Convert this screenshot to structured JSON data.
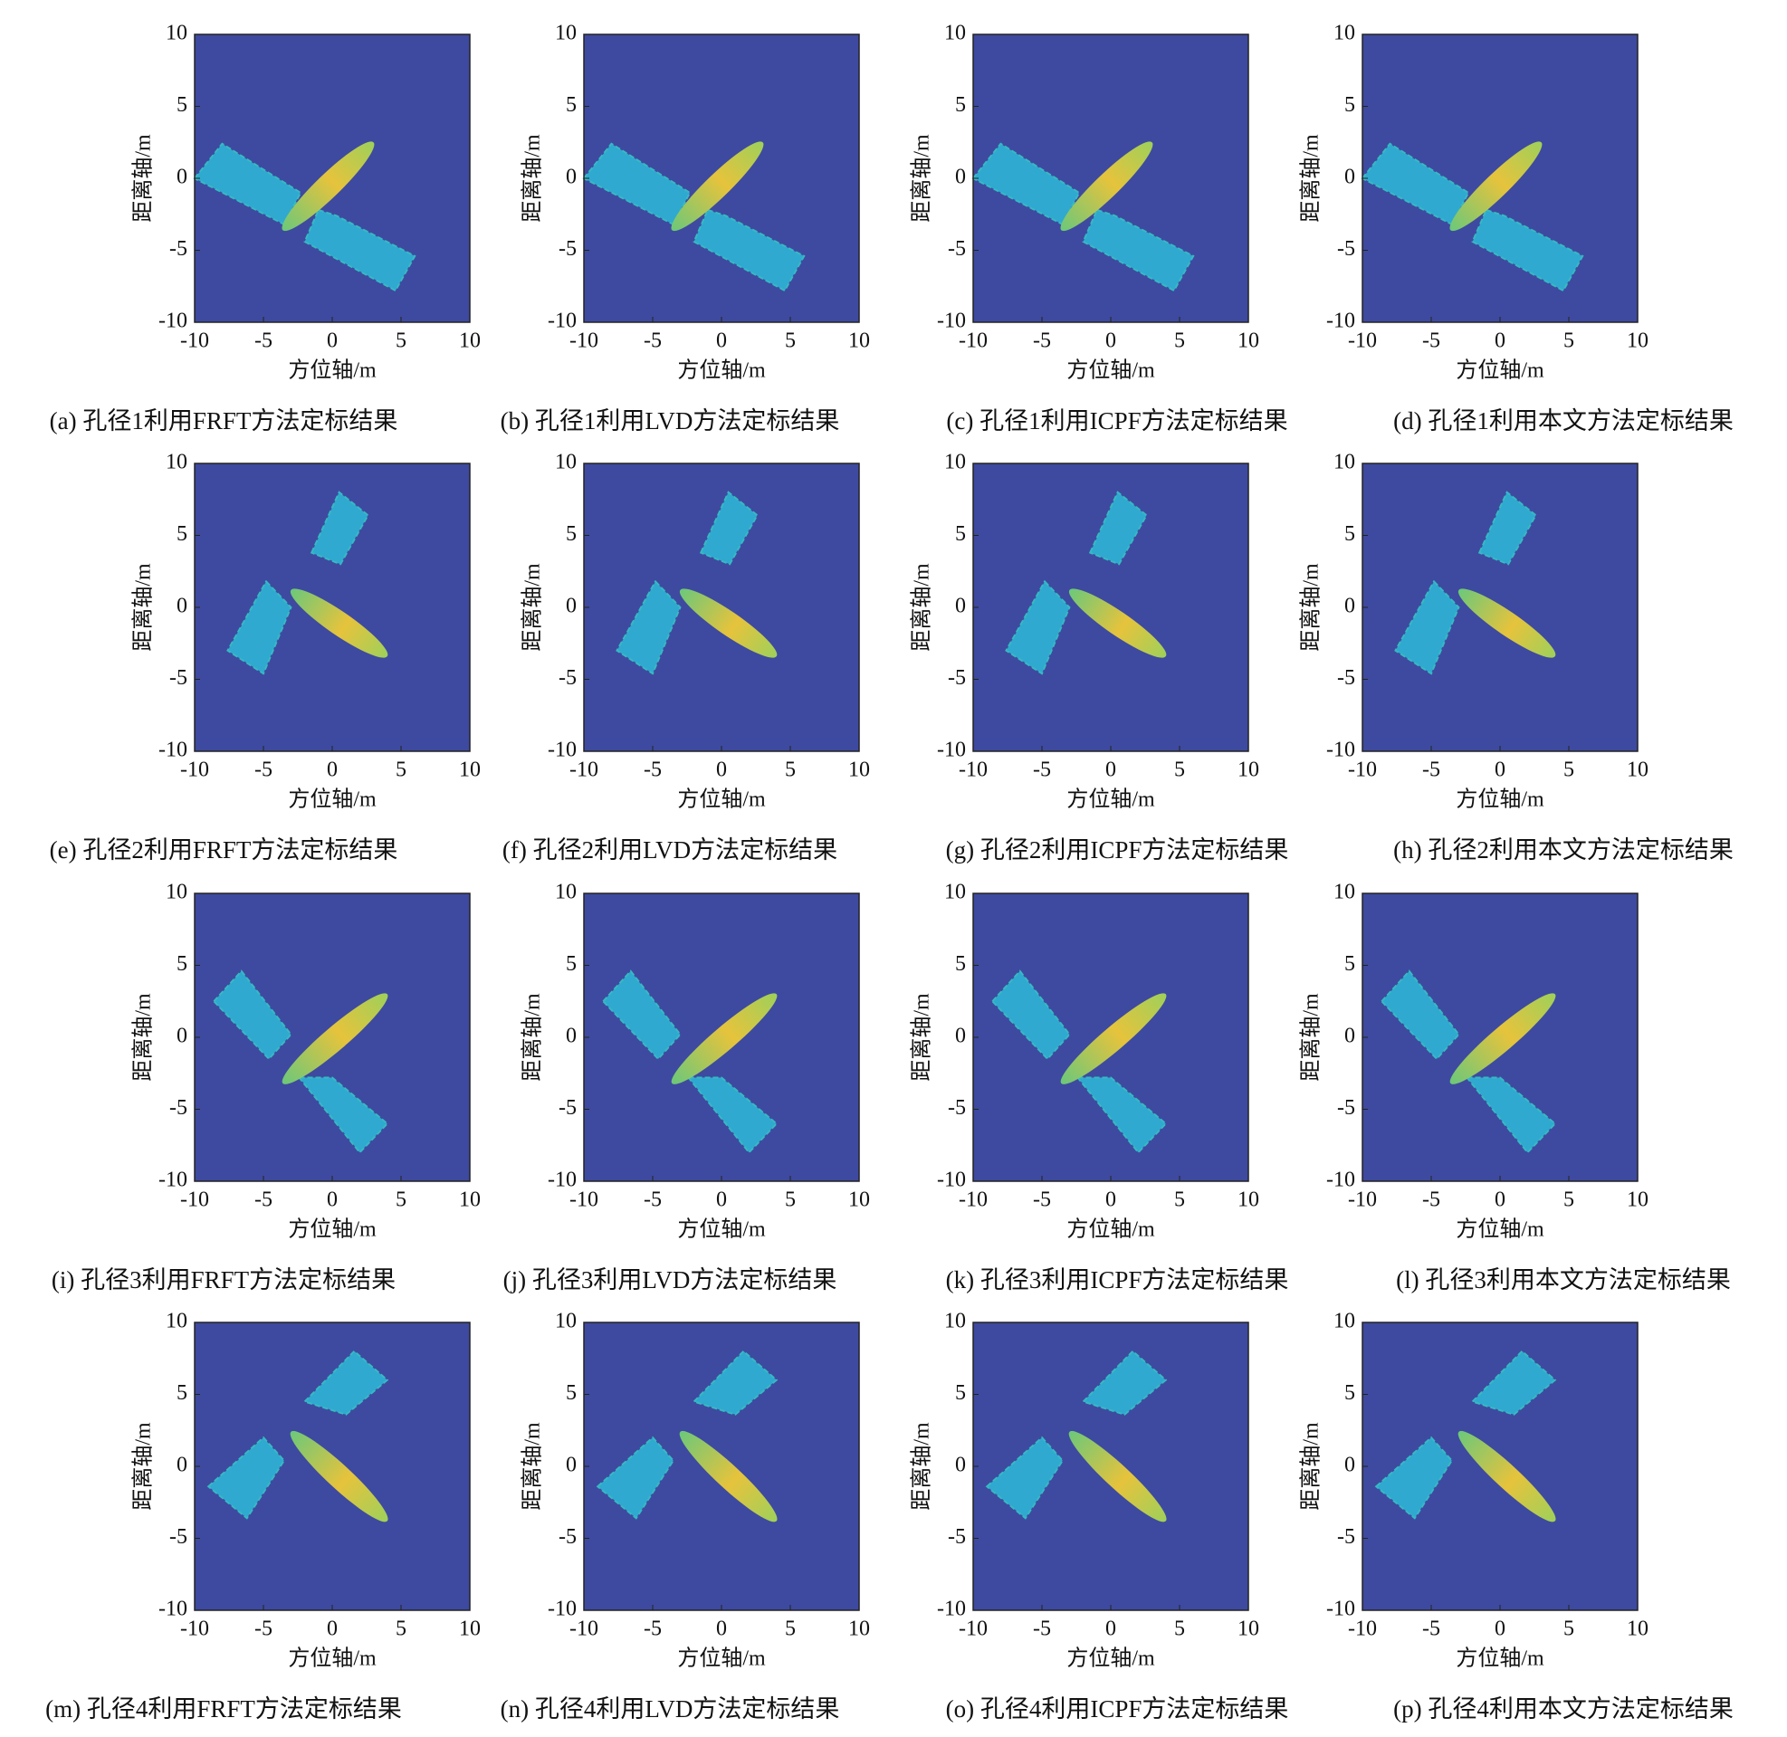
{
  "chart_data": [
    {
      "type": "image",
      "caption": "(a) 孔径1利用FRFT方法定标结果",
      "xlabel": "方位轴/m",
      "ylabel": "距离轴/m",
      "xlim": [
        -10,
        10
      ],
      "ylim": [
        -10,
        10
      ],
      "xticks": [
        -10,
        -5,
        0,
        5,
        10
      ],
      "yticks": [
        -10,
        -5,
        0,
        5,
        10
      ]
    },
    {
      "type": "image",
      "caption": "(b) 孔径1利用LVD方法定标结果",
      "xlabel": "方位轴/m",
      "ylabel": "距离轴/m",
      "xlim": [
        -10,
        10
      ],
      "ylim": [
        -10,
        10
      ],
      "xticks": [
        -10,
        -5,
        0,
        5,
        10
      ],
      "yticks": [
        -10,
        -5,
        0,
        5,
        10
      ]
    },
    {
      "type": "image",
      "caption": "(c) 孔径1利用ICPF方法定标结果",
      "xlabel": "方位轴/m",
      "ylabel": "距离轴/m",
      "xlim": [
        -10,
        10
      ],
      "ylim": [
        -10,
        10
      ],
      "xticks": [
        -10,
        -5,
        0,
        5,
        10
      ],
      "yticks": [
        -10,
        -5,
        0,
        5,
        10
      ]
    },
    {
      "type": "image",
      "caption": "(d) 孔径1利用本文方法定标结果",
      "xlabel": "方位轴/m",
      "ylabel": "距离轴/m",
      "xlim": [
        -10,
        10
      ],
      "ylim": [
        -10,
        10
      ],
      "xticks": [
        -10,
        -5,
        0,
        5,
        10
      ],
      "yticks": [
        -10,
        -5,
        0,
        5,
        10
      ]
    },
    {
      "type": "image",
      "caption": "(e) 孔径2利用FRFT方法定标结果",
      "xlabel": "方位轴/m",
      "ylabel": "距离轴/m",
      "xlim": [
        -10,
        10
      ],
      "ylim": [
        -10,
        10
      ],
      "xticks": [
        -10,
        -5,
        0,
        5,
        10
      ],
      "yticks": [
        -10,
        -5,
        0,
        5,
        10
      ]
    },
    {
      "type": "image",
      "caption": "(f) 孔径2利用LVD方法定标结果",
      "xlabel": "方位轴/m",
      "ylabel": "距离轴/m",
      "xlim": [
        -10,
        10
      ],
      "ylim": [
        -10,
        10
      ],
      "xticks": [
        -10,
        -5,
        0,
        5,
        10
      ],
      "yticks": [
        -10,
        -5,
        0,
        5,
        10
      ]
    },
    {
      "type": "image",
      "caption": "(g) 孔径2利用ICPF方法定标结果",
      "xlabel": "方位轴/m",
      "ylabel": "距离轴/m",
      "xlim": [
        -10,
        10
      ],
      "ylim": [
        -10,
        10
      ],
      "xticks": [
        -10,
        -5,
        0,
        5,
        10
      ],
      "yticks": [
        -10,
        -5,
        0,
        5,
        10
      ]
    },
    {
      "type": "image",
      "caption": "(h) 孔径2利用本文方法定标结果",
      "xlabel": "方位轴/m",
      "ylabel": "距离轴/m",
      "xlim": [
        -10,
        10
      ],
      "ylim": [
        -10,
        10
      ],
      "xticks": [
        -10,
        -5,
        0,
        5,
        10
      ],
      "yticks": [
        -10,
        -5,
        0,
        5,
        10
      ]
    },
    {
      "type": "image",
      "caption": "(i) 孔径3利用FRFT方法定标结果",
      "xlabel": "方位轴/m",
      "ylabel": "距离轴/m",
      "xlim": [
        -10,
        10
      ],
      "ylim": [
        -10,
        10
      ],
      "xticks": [
        -10,
        -5,
        0,
        5,
        10
      ],
      "yticks": [
        -10,
        -5,
        0,
        5,
        10
      ]
    },
    {
      "type": "image",
      "caption": "(j) 孔径3利用LVD方法定标结果",
      "xlabel": "方位轴/m",
      "ylabel": "距离轴/m",
      "xlim": [
        -10,
        10
      ],
      "ylim": [
        -10,
        10
      ],
      "xticks": [
        -10,
        -5,
        0,
        5,
        10
      ],
      "yticks": [
        -10,
        -5,
        0,
        5,
        10
      ]
    },
    {
      "type": "image",
      "caption": "(k) 孔径3利用ICPF方法定标结果",
      "xlabel": "方位轴/m",
      "ylabel": "距离轴/m",
      "xlim": [
        -10,
        10
      ],
      "ylim": [
        -10,
        10
      ],
      "xticks": [
        -10,
        -5,
        0,
        5,
        10
      ],
      "yticks": [
        -10,
        -5,
        0,
        5,
        10
      ]
    },
    {
      "type": "image",
      "caption": "(l) 孔径3利用本文方法定标结果",
      "xlabel": "方位轴/m",
      "ylabel": "距离轴/m",
      "xlim": [
        -10,
        10
      ],
      "ylim": [
        -10,
        10
      ],
      "xticks": [
        -10,
        -5,
        0,
        5,
        10
      ],
      "yticks": [
        -10,
        -5,
        0,
        5,
        10
      ]
    },
    {
      "type": "image",
      "caption": "(m) 孔径4利用FRFT方法定标结果",
      "xlabel": "方位轴/m",
      "ylabel": "距离轴/m",
      "xlim": [
        -10,
        10
      ],
      "ylim": [
        -10,
        10
      ],
      "xticks": [
        -10,
        -5,
        0,
        5,
        10
      ],
      "yticks": [
        -10,
        -5,
        0,
        5,
        10
      ]
    },
    {
      "type": "image",
      "caption": "(n) 孔径4利用LVD方法定标结果",
      "xlabel": "方位轴/m",
      "ylabel": "距离轴/m",
      "xlim": [
        -10,
        10
      ],
      "ylim": [
        -10,
        10
      ],
      "xticks": [
        -10,
        -5,
        0,
        5,
        10
      ],
      "yticks": [
        -10,
        -5,
        0,
        5,
        10
      ]
    },
    {
      "type": "image",
      "caption": "(o) 孔径4利用ICPF方法定标结果",
      "xlabel": "方位轴/m",
      "ylabel": "距离轴/m",
      "xlim": [
        -10,
        10
      ],
      "ylim": [
        -10,
        10
      ],
      "xticks": [
        -10,
        -5,
        0,
        5,
        10
      ],
      "yticks": [
        -10,
        -5,
        0,
        5,
        10
      ]
    },
    {
      "type": "image",
      "caption": "(p) 孔径4利用本文方法定标结果",
      "xlabel": "方位轴/m",
      "ylabel": "距离轴/m",
      "xlim": [
        -10,
        10
      ],
      "ylim": [
        -10,
        10
      ],
      "xticks": [
        -10,
        -5,
        0,
        5,
        10
      ],
      "yticks": [
        -10,
        -5,
        0,
        5,
        10
      ]
    }
  ]
}
